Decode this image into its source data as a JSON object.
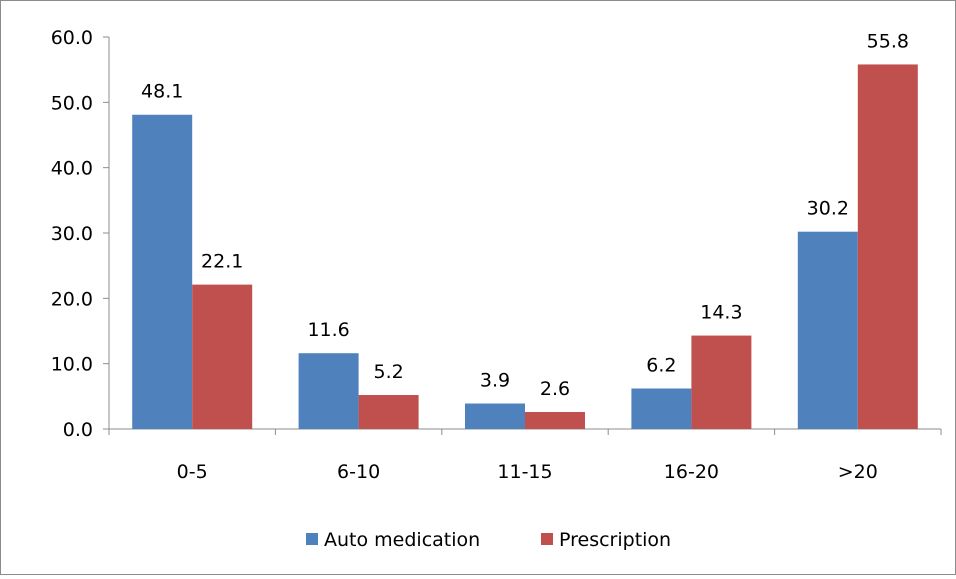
{
  "chart_data": {
    "type": "bar",
    "categories": [
      "0-5",
      "6-10",
      "11-15",
      "16-20",
      ">20"
    ],
    "series": [
      {
        "name": "Auto medication",
        "values": [
          48.1,
          11.6,
          3.9,
          6.2,
          30.2
        ],
        "color": "#4f81bd"
      },
      {
        "name": "Prescription",
        "values": [
          22.1,
          5.2,
          2.6,
          14.3,
          55.8
        ],
        "color": "#c0504d"
      }
    ],
    "y_ticks": [
      "0.0",
      "10.0",
      "20.0",
      "30.0",
      "40.0",
      "50.0",
      "60.0"
    ],
    "ylim": [
      0,
      60
    ],
    "grid": false,
    "legend_position": "bottom",
    "data_labels": true,
    "title": "",
    "xlabel": "",
    "ylabel": ""
  }
}
